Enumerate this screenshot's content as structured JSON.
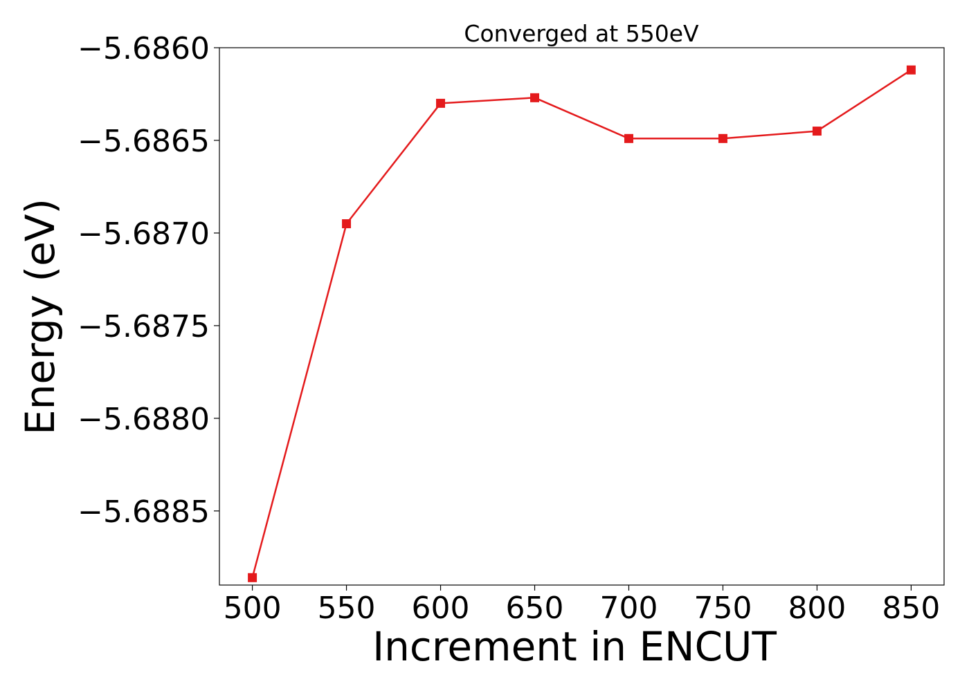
{
  "chart_data": {
    "type": "line",
    "title": "Converged at 550eV",
    "xlabel": "Increment in ENCUT",
    "ylabel": "Energy (eV)",
    "x": [
      500,
      550,
      600,
      650,
      700,
      750,
      800,
      850
    ],
    "series": [
      {
        "values": [
          -5.68886,
          -5.68695,
          -5.6863,
          -5.68627,
          -5.68649,
          -5.68649,
          -5.68645,
          -5.68612
        ],
        "color": "#e41a1c",
        "marker": "square"
      }
    ],
    "xticks": [
      500,
      550,
      600,
      650,
      700,
      750,
      800,
      850
    ],
    "xtick_labels": [
      "500",
      "550",
      "600",
      "650",
      "700",
      "750",
      "800",
      "850"
    ],
    "yticks": [
      -5.686,
      -5.6865,
      -5.687,
      -5.6875,
      -5.688,
      -5.6885
    ],
    "ytick_labels": [
      "−5.6860",
      "−5.6865",
      "−5.6870",
      "−5.6875",
      "−5.6880",
      "−5.6885"
    ],
    "xlim": [
      482.5,
      867.5
    ],
    "ylim": [
      -5.6889,
      -5.686
    ],
    "grid": false,
    "legend": false
  }
}
